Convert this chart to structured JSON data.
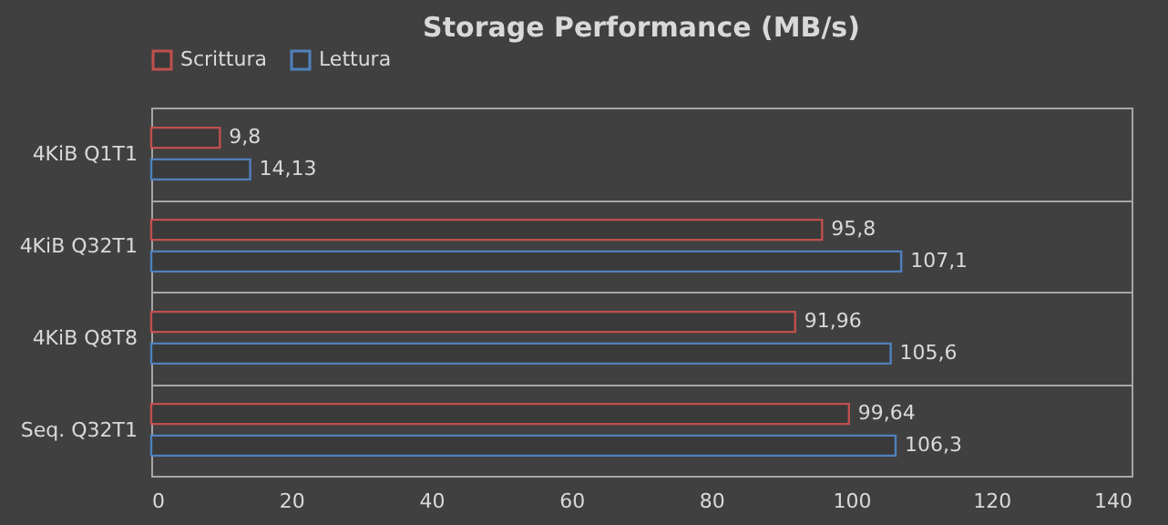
{
  "chart_data": {
    "type": "bar",
    "orientation": "horizontal",
    "title": "Storage Performance (MB/s)",
    "categories": [
      "4KiB Q1T1",
      "4KiB Q32T1",
      "4KiB Q8T8",
      "Seq. Q32T1"
    ],
    "series": [
      {
        "name": "Scrittura",
        "color": "#c0504d",
        "values": [
          9.8,
          95.8,
          91.96,
          99.64
        ],
        "value_labels": [
          "9,8",
          "95,8",
          "91,96",
          "99,64"
        ]
      },
      {
        "name": "Lettura",
        "color": "#4f81bd",
        "values": [
          14.13,
          107.1,
          105.6,
          106.3
        ],
        "value_labels": [
          "14,13",
          "107,1",
          "105,6",
          "106,3"
        ]
      }
    ],
    "xlim": [
      0,
      140
    ],
    "xticks": [
      0,
      20,
      40,
      60,
      80,
      100,
      120,
      140
    ],
    "grid": "y",
    "legend": "top"
  }
}
